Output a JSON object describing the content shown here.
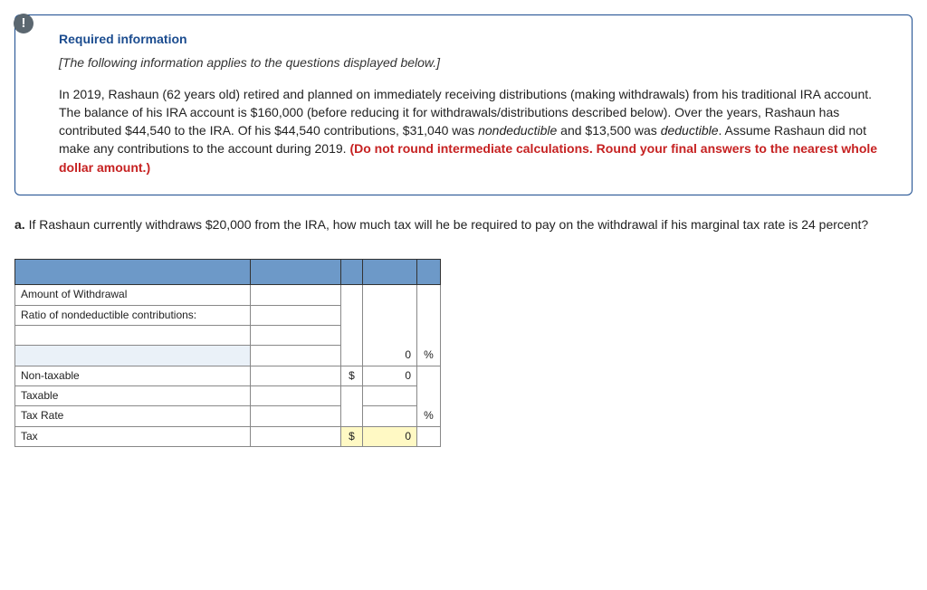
{
  "info": {
    "badge": "!",
    "title": "Required information",
    "subtitle": "[The following information applies to the questions displayed below.]",
    "body_part1": "In 2019, Rashaun (62 years old) retired and planned on immediately receiving distributions (making withdrawals) from his traditional IRA account. The balance of his IRA account is $160,000 (before reducing it for withdrawals/distributions described below). Over the years, Rashaun has contributed $44,540 to the IRA. Of his $44,540 contributions, $31,040 was ",
    "body_em1": "nondeductible",
    "body_part2": " and $13,500 was ",
    "body_em2": "deductible",
    "body_part3": ". Assume Rashaun did not make any contributions to the account during 2019. ",
    "body_warn": "(Do not round intermediate calculations. Round your final answers to the nearest whole dollar amount.)"
  },
  "question": {
    "label": "a.",
    "text": " If Rashaun currently withdraws $20,000 from the IRA, how much tax will he be required to pay on the withdrawal if his marginal tax rate is 24 percent?"
  },
  "table": {
    "rows": {
      "amount_withdrawal": "Amount of Withdrawal",
      "ratio_nondeductible": "Ratio of nondeductible contributions:",
      "blank_row_value": "0",
      "blank_row_unit": "%",
      "non_taxable": "Non-taxable",
      "non_taxable_sym": "$",
      "non_taxable_val": "0",
      "taxable": "Taxable",
      "tax_rate": "Tax Rate",
      "tax_rate_unit": "%",
      "tax": "Tax",
      "tax_sym": "$",
      "tax_val": "0"
    }
  }
}
